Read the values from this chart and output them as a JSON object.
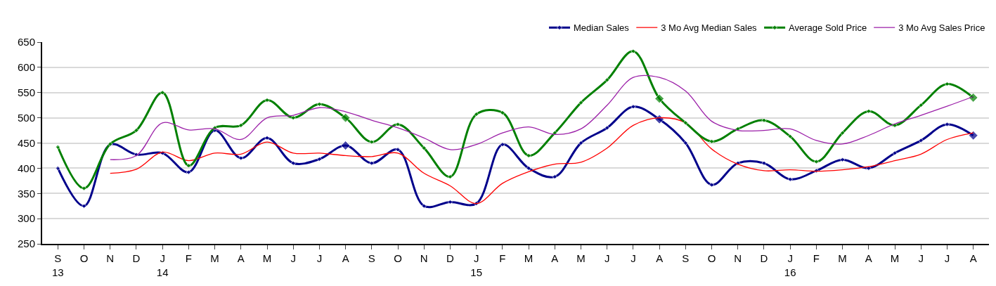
{
  "chart_data": {
    "type": "line",
    "categories": [
      "S\n13",
      "O",
      "N",
      "D",
      "J\n14",
      "F",
      "M",
      "A",
      "M",
      "J",
      "J",
      "A",
      "S",
      "O",
      "N",
      "D",
      "J\n15",
      "F",
      "M",
      "A",
      "M",
      "J",
      "J",
      "A",
      "S",
      "O",
      "N",
      "D",
      "J\n16",
      "F",
      "M",
      "A",
      "M",
      "J",
      "J",
      "A"
    ],
    "series": [
      {
        "name": "Median Sales",
        "color": "#00008b",
        "marker": "diamond",
        "values": [
          400,
          325,
          447,
          427,
          430,
          392,
          475,
          420,
          460,
          410,
          418,
          445,
          410,
          437,
          325,
          333,
          330,
          447,
          400,
          383,
          450,
          480,
          522,
          497,
          450,
          367,
          410,
          410,
          378,
          395,
          417,
          400,
          430,
          455,
          487,
          465
        ]
      },
      {
        "name": "3 Mo Avg Median Sales",
        "color": "#ff0000",
        "values": [
          null,
          null,
          390,
          398,
          432,
          415,
          430,
          428,
          452,
          430,
          430,
          425,
          423,
          430,
          390,
          365,
          330,
          370,
          393,
          408,
          412,
          440,
          485,
          500,
          490,
          438,
          408,
          395,
          397,
          394,
          397,
          403,
          415,
          428,
          457,
          470
        ]
      },
      {
        "name": "Average Sold Price",
        "color": "#008000",
        "marker": "diamond",
        "values": [
          442,
          360,
          448,
          475,
          550,
          405,
          480,
          485,
          535,
          500,
          527,
          500,
          452,
          487,
          440,
          383,
          507,
          510,
          425,
          470,
          530,
          575,
          632,
          538,
          490,
          453,
          478,
          495,
          463,
          413,
          470,
          513,
          485,
          525,
          567,
          540
        ]
      },
      {
        "name": "3 Mo Avg Sales Price",
        "color": "#9b1fa8",
        "values": [
          null,
          null,
          417,
          425,
          490,
          476,
          478,
          457,
          500,
          505,
          520,
          512,
          495,
          480,
          460,
          437,
          447,
          470,
          482,
          467,
          478,
          525,
          580,
          580,
          553,
          493,
          475,
          475,
          478,
          455,
          448,
          465,
          488,
          505,
          523,
          542
        ]
      }
    ],
    "ylim": [
      250,
      650
    ],
    "yticks": [
      250,
      300,
      350,
      400,
      450,
      500,
      550,
      600,
      650
    ],
    "grid": "y",
    "legend": "top right"
  }
}
